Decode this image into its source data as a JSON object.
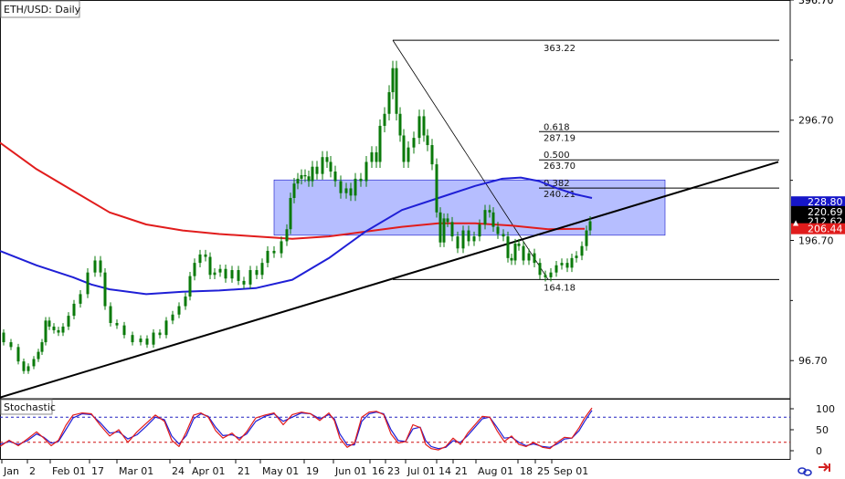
{
  "symbol_label": "ETH/USD: Daily",
  "indicator_label": "Stochastic",
  "colors": {
    "candle": "#0a7a0a",
    "ma_red": "#e11c1c",
    "ma_blue": "#1f1fd6",
    "zone_fill": "#9ea8ff",
    "trend": "#000000",
    "badge_blue": "#1616c8",
    "badge_black": "#000000",
    "badge_red": "#e11c1c",
    "stoch_k": "#e11c1c",
    "stoch_d": "#1f1fd6",
    "level_80": "#2020c0",
    "level_20": "#d01010",
    "icon_red": "#d42020",
    "icon_blue": "#2030c0"
  },
  "price_axis": {
    "ticks": [
      "96.70",
      "196.70",
      "296.70",
      "396.70"
    ],
    "top_label": "396.70"
  },
  "stoch_axis": {
    "ticks": [
      "100",
      "50",
      "0"
    ]
  },
  "x_axis": {
    "labels": [
      "Jan",
      "2",
      "Feb 01",
      "17",
      "Mar 01",
      "24",
      "Apr 01",
      "21",
      "May 01",
      "19",
      "Jun 01",
      "16",
      "23",
      "Jul 01",
      "14",
      "21",
      "Aug 01",
      "18",
      "25",
      "Sep 01"
    ]
  },
  "fib_labels": {
    "high": "363.22",
    "f618": "0.618",
    "v618": "287.19",
    "f500": "0.500",
    "v500": "263.70",
    "f382": "0.382",
    "v382": "240.21",
    "low": "164.18"
  },
  "price_badges": {
    "blue": "228.80",
    "black_a": "220.69",
    "black_b": "212.62",
    "red": "206.44"
  },
  "chart_data": {
    "type": "candlestick",
    "title": "ETH/USD: Daily",
    "ylim": [
      65,
      396.7
    ],
    "price_ticks": [
      96.7,
      196.7,
      296.7,
      396.7
    ],
    "close_series": [
      [
        0,
        120
      ],
      [
        8,
        112
      ],
      [
        16,
        108
      ],
      [
        24,
        96
      ],
      [
        28,
        88
      ],
      [
        34,
        92
      ],
      [
        40,
        98
      ],
      [
        44,
        104
      ],
      [
        48,
        112
      ],
      [
        52,
        130
      ],
      [
        56,
        125
      ],
      [
        62,
        122
      ],
      [
        66,
        120
      ],
      [
        72,
        125
      ],
      [
        78,
        134
      ],
      [
        84,
        144
      ],
      [
        92,
        152
      ],
      [
        100,
        170
      ],
      [
        108,
        180
      ],
      [
        112,
        170
      ],
      [
        118,
        142
      ],
      [
        124,
        128
      ],
      [
        132,
        126
      ],
      [
        140,
        118
      ],
      [
        150,
        112
      ],
      [
        158,
        115
      ],
      [
        164,
        110
      ],
      [
        172,
        120
      ],
      [
        178,
        118
      ],
      [
        186,
        130
      ],
      [
        192,
        135
      ],
      [
        200,
        142
      ],
      [
        206,
        150
      ],
      [
        210,
        167
      ],
      [
        216,
        178
      ],
      [
        222,
        185
      ],
      [
        228,
        183
      ],
      [
        232,
        168
      ],
      [
        238,
        170
      ],
      [
        244,
        173
      ],
      [
        250,
        165
      ],
      [
        258,
        172
      ],
      [
        264,
        163
      ],
      [
        270,
        160
      ],
      [
        278,
        172
      ],
      [
        284,
        168
      ],
      [
        290,
        178
      ],
      [
        296,
        188
      ],
      [
        304,
        186
      ],
      [
        312,
        196
      ],
      [
        316,
        206
      ],
      [
        320,
        232
      ],
      [
        324,
        244
      ],
      [
        328,
        248
      ],
      [
        332,
        251
      ],
      [
        336,
        250
      ],
      [
        340,
        246
      ],
      [
        344,
        258
      ],
      [
        350,
        252
      ],
      [
        356,
        266
      ],
      [
        360,
        262
      ],
      [
        364,
        254
      ],
      [
        370,
        246
      ],
      [
        376,
        236
      ],
      [
        382,
        240
      ],
      [
        386,
        234
      ],
      [
        392,
        248
      ],
      [
        398,
        246
      ],
      [
        404,
        262
      ],
      [
        410,
        270
      ],
      [
        414,
        262
      ],
      [
        418,
        292
      ],
      [
        424,
        302
      ],
      [
        428,
        320
      ],
      [
        432,
        340
      ],
      [
        436,
        302
      ],
      [
        440,
        284
      ],
      [
        444,
        262
      ],
      [
        450,
        274
      ],
      [
        456,
        282
      ],
      [
        462,
        300
      ],
      [
        466,
        284
      ],
      [
        470,
        276
      ],
      [
        476,
        260
      ],
      [
        480,
        220
      ],
      [
        484,
        195
      ],
      [
        488,
        215
      ],
      [
        492,
        212
      ],
      [
        498,
        200
      ],
      [
        504,
        190
      ],
      [
        510,
        205
      ],
      [
        516,
        196
      ],
      [
        522,
        200
      ],
      [
        528,
        210
      ],
      [
        534,
        222
      ],
      [
        538,
        220
      ],
      [
        542,
        208
      ],
      [
        548,
        202
      ],
      [
        554,
        200
      ],
      [
        558,
        182
      ],
      [
        562,
        180
      ],
      [
        566,
        194
      ],
      [
        570,
        192
      ],
      [
        576,
        180
      ],
      [
        582,
        186
      ],
      [
        588,
        178
      ],
      [
        594,
        168
      ],
      [
        600,
        166
      ],
      [
        606,
        170
      ],
      [
        612,
        176
      ],
      [
        618,
        178
      ],
      [
        624,
        174
      ],
      [
        628,
        182
      ],
      [
        634,
        184
      ],
      [
        640,
        192
      ],
      [
        644,
        205
      ],
      [
        648,
        212.62
      ]
    ],
    "series": [
      {
        "name": "",
        "color": "#e11c1c",
        "points": [
          [
            0,
            278
          ],
          [
            40,
            256
          ],
          [
            80,
            238
          ],
          [
            120,
            220
          ],
          [
            160,
            210
          ],
          [
            200,
            205
          ],
          [
            240,
            202
          ],
          [
            280,
            200
          ],
          [
            320,
            198
          ],
          [
            360,
            200
          ],
          [
            400,
            204
          ],
          [
            440,
            208
          ],
          [
            480,
            211
          ],
          [
            520,
            211
          ],
          [
            560,
            209
          ],
          [
            600,
            206
          ],
          [
            640,
            206.44
          ]
        ]
      },
      {
        "name": "",
        "color": "#1f1fd6",
        "points": [
          [
            0,
            188
          ],
          [
            40,
            176
          ],
          [
            80,
            166
          ],
          [
            100,
            160
          ],
          [
            120,
            156
          ],
          [
            160,
            152
          ],
          [
            200,
            154
          ],
          [
            240,
            155
          ],
          [
            280,
            157
          ],
          [
            320,
            164
          ],
          [
            360,
            182
          ],
          [
            400,
            204
          ],
          [
            440,
            222
          ],
          [
            480,
            232
          ],
          [
            520,
            242
          ],
          [
            550,
            248
          ],
          [
            570,
            249
          ],
          [
            590,
            246
          ],
          [
            610,
            240
          ],
          [
            630,
            235
          ],
          [
            648,
            232
          ]
        ]
      }
    ],
    "fibonacci": {
      "high": 363.22,
      "low": 164.18,
      "levels": [
        {
          "ratio": 0.618,
          "price": 287.19
        },
        {
          "ratio": 0.5,
          "price": 263.7
        },
        {
          "ratio": 0.382,
          "price": 240.21
        }
      ]
    },
    "zone": {
      "from": 201,
      "to": 247
    },
    "trendline": {
      "x0": 0,
      "y0": 66,
      "x1": 852,
      "y1": 262
    },
    "last_prices": [
      228.8,
      220.69,
      212.62,
      206.44
    ],
    "stochastic": {
      "ylim": [
        0,
        100
      ],
      "overbought": 80,
      "oversold": 20,
      "k_points": [
        [
          0,
          10
        ],
        [
          10,
          25
        ],
        [
          20,
          12
        ],
        [
          30,
          28
        ],
        [
          40,
          45
        ],
        [
          48,
          30
        ],
        [
          56,
          12
        ],
        [
          64,
          25
        ],
        [
          72,
          60
        ],
        [
          80,
          85
        ],
        [
          90,
          90
        ],
        [
          100,
          88
        ],
        [
          110,
          60
        ],
        [
          120,
          35
        ],
        [
          130,
          50
        ],
        [
          140,
          20
        ],
        [
          150,
          45
        ],
        [
          160,
          65
        ],
        [
          170,
          85
        ],
        [
          180,
          70
        ],
        [
          188,
          25
        ],
        [
          196,
          10
        ],
        [
          204,
          45
        ],
        [
          212,
          85
        ],
        [
          220,
          90
        ],
        [
          228,
          80
        ],
        [
          236,
          48
        ],
        [
          244,
          30
        ],
        [
          254,
          42
        ],
        [
          262,
          25
        ],
        [
          270,
          45
        ],
        [
          280,
          78
        ],
        [
          290,
          85
        ],
        [
          300,
          90
        ],
        [
          310,
          62
        ],
        [
          320,
          86
        ],
        [
          330,
          92
        ],
        [
          340,
          88
        ],
        [
          350,
          72
        ],
        [
          360,
          90
        ],
        [
          366,
          72
        ],
        [
          372,
          30
        ],
        [
          380,
          8
        ],
        [
          388,
          18
        ],
        [
          396,
          80
        ],
        [
          404,
          92
        ],
        [
          412,
          94
        ],
        [
          420,
          86
        ],
        [
          428,
          40
        ],
        [
          436,
          18
        ],
        [
          444,
          22
        ],
        [
          452,
          62
        ],
        [
          460,
          55
        ],
        [
          466,
          15
        ],
        [
          472,
          5
        ],
        [
          480,
          2
        ],
        [
          488,
          10
        ],
        [
          496,
          30
        ],
        [
          504,
          15
        ],
        [
          512,
          42
        ],
        [
          520,
          62
        ],
        [
          528,
          82
        ],
        [
          536,
          80
        ],
        [
          544,
          48
        ],
        [
          552,
          22
        ],
        [
          560,
          35
        ],
        [
          568,
          15
        ],
        [
          576,
          10
        ],
        [
          584,
          20
        ],
        [
          594,
          8
        ],
        [
          602,
          5
        ],
        [
          610,
          20
        ],
        [
          618,
          32
        ],
        [
          626,
          30
        ],
        [
          634,
          55
        ],
        [
          640,
          78
        ],
        [
          648,
          102
        ]
      ],
      "d_points": [
        [
          0,
          15
        ],
        [
          10,
          22
        ],
        [
          20,
          15
        ],
        [
          30,
          24
        ],
        [
          40,
          40
        ],
        [
          48,
          32
        ],
        [
          56,
          18
        ],
        [
          64,
          22
        ],
        [
          72,
          50
        ],
        [
          80,
          78
        ],
        [
          90,
          88
        ],
        [
          100,
          86
        ],
        [
          110,
          66
        ],
        [
          120,
          42
        ],
        [
          130,
          45
        ],
        [
          140,
          28
        ],
        [
          150,
          38
        ],
        [
          160,
          58
        ],
        [
          170,
          80
        ],
        [
          180,
          74
        ],
        [
          188,
          35
        ],
        [
          196,
          16
        ],
        [
          204,
          36
        ],
        [
          212,
          76
        ],
        [
          220,
          88
        ],
        [
          228,
          82
        ],
        [
          236,
          56
        ],
        [
          244,
          36
        ],
        [
          254,
          38
        ],
        [
          262,
          30
        ],
        [
          270,
          40
        ],
        [
          280,
          70
        ],
        [
          290,
          82
        ],
        [
          300,
          88
        ],
        [
          310,
          70
        ],
        [
          320,
          80
        ],
        [
          330,
          90
        ],
        [
          340,
          88
        ],
        [
          350,
          76
        ],
        [
          360,
          86
        ],
        [
          366,
          76
        ],
        [
          372,
          40
        ],
        [
          380,
          14
        ],
        [
          388,
          14
        ],
        [
          396,
          70
        ],
        [
          404,
          88
        ],
        [
          412,
          92
        ],
        [
          420,
          88
        ],
        [
          428,
          50
        ],
        [
          436,
          24
        ],
        [
          444,
          22
        ],
        [
          452,
          52
        ],
        [
          460,
          56
        ],
        [
          466,
          24
        ],
        [
          472,
          10
        ],
        [
          480,
          5
        ],
        [
          488,
          8
        ],
        [
          496,
          24
        ],
        [
          504,
          20
        ],
        [
          512,
          36
        ],
        [
          520,
          56
        ],
        [
          528,
          76
        ],
        [
          536,
          80
        ],
        [
          544,
          56
        ],
        [
          552,
          30
        ],
        [
          560,
          32
        ],
        [
          568,
          20
        ],
        [
          576,
          12
        ],
        [
          584,
          16
        ],
        [
          594,
          10
        ],
        [
          602,
          8
        ],
        [
          610,
          16
        ],
        [
          618,
          28
        ],
        [
          626,
          30
        ],
        [
          634,
          48
        ],
        [
          640,
          70
        ],
        [
          648,
          96
        ]
      ]
    },
    "x_tick_labels": [
      "Jan",
      "2",
      "Feb 01",
      "17",
      "Mar 01",
      "24",
      "Apr 01",
      "21",
      "May 01",
      "19",
      "Jun 01",
      "16",
      "23",
      "Jul 01",
      "14",
      "21",
      "Aug 01",
      "18",
      "25",
      "Sep 01"
    ]
  }
}
